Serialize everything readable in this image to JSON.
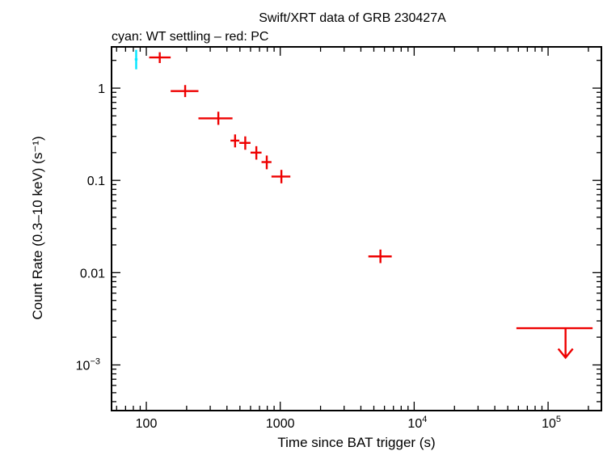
{
  "chart_data": {
    "type": "scatter",
    "title": "Swift/XRT data of GRB 230427A",
    "subtitle": "cyan: WT settling – red: PC",
    "xlabel": "Time since BAT trigger (s)",
    "ylabel": "Count Rate (0.3–10 keV) (s⁻¹)",
    "xscale": "log",
    "yscale": "log",
    "xlim": [
      55,
      250000
    ],
    "ylim": [
      0.00032,
      2.8
    ],
    "x_tick_labels": [
      {
        "value": 100,
        "label": "100"
      },
      {
        "value": 1000,
        "label": "1000"
      },
      {
        "value": 10000,
        "base": "10",
        "exp": "4"
      },
      {
        "value": 100000,
        "base": "10",
        "exp": "5"
      }
    ],
    "y_tick_labels": [
      {
        "value": 1,
        "label": "1"
      },
      {
        "value": 0.1,
        "label": "0.1"
      },
      {
        "value": 0.01,
        "label": "0.01"
      },
      {
        "value": 0.001,
        "base": "10",
        "exp": "−3"
      }
    ],
    "series": [
      {
        "name": "WT settling",
        "color": "#00e5ff",
        "points": [
          {
            "x": 84,
            "xlo": 82,
            "xhi": 86,
            "y": 2.05,
            "ylo": 1.6,
            "yhi": 2.6
          }
        ]
      },
      {
        "name": "PC",
        "color": "#ee0000",
        "points": [
          {
            "x": 126,
            "xlo": 105,
            "xhi": 152,
            "y": 2.15,
            "ylo": 1.87,
            "yhi": 2.45
          },
          {
            "x": 195,
            "xlo": 152,
            "xhi": 245,
            "y": 0.93,
            "ylo": 0.8,
            "yhi": 1.08
          },
          {
            "x": 345,
            "xlo": 245,
            "xhi": 440,
            "y": 0.47,
            "ylo": 0.4,
            "yhi": 0.555
          },
          {
            "x": 460,
            "xlo": 425,
            "xhi": 495,
            "y": 0.27,
            "ylo": 0.228,
            "yhi": 0.315
          },
          {
            "x": 548,
            "xlo": 495,
            "xhi": 600,
            "y": 0.255,
            "ylo": 0.215,
            "yhi": 0.3
          },
          {
            "x": 663,
            "xlo": 600,
            "xhi": 725,
            "y": 0.2,
            "ylo": 0.168,
            "yhi": 0.235
          },
          {
            "x": 793,
            "xlo": 725,
            "xhi": 860,
            "y": 0.158,
            "ylo": 0.132,
            "yhi": 0.186
          },
          {
            "x": 1020,
            "xlo": 860,
            "xhi": 1190,
            "y": 0.11,
            "ylo": 0.093,
            "yhi": 0.13
          },
          {
            "x": 5600,
            "xlo": 4550,
            "xhi": 6800,
            "y": 0.015,
            "ylo": 0.0127,
            "yhi": 0.0178
          }
        ]
      },
      {
        "name": "PC upper limit",
        "color": "#ee0000",
        "upper_limit": true,
        "points": [
          {
            "x": 135000,
            "xlo": 58000,
            "xhi": 215000,
            "y": 0.0025,
            "ylo": 0.0012
          }
        ]
      }
    ]
  }
}
